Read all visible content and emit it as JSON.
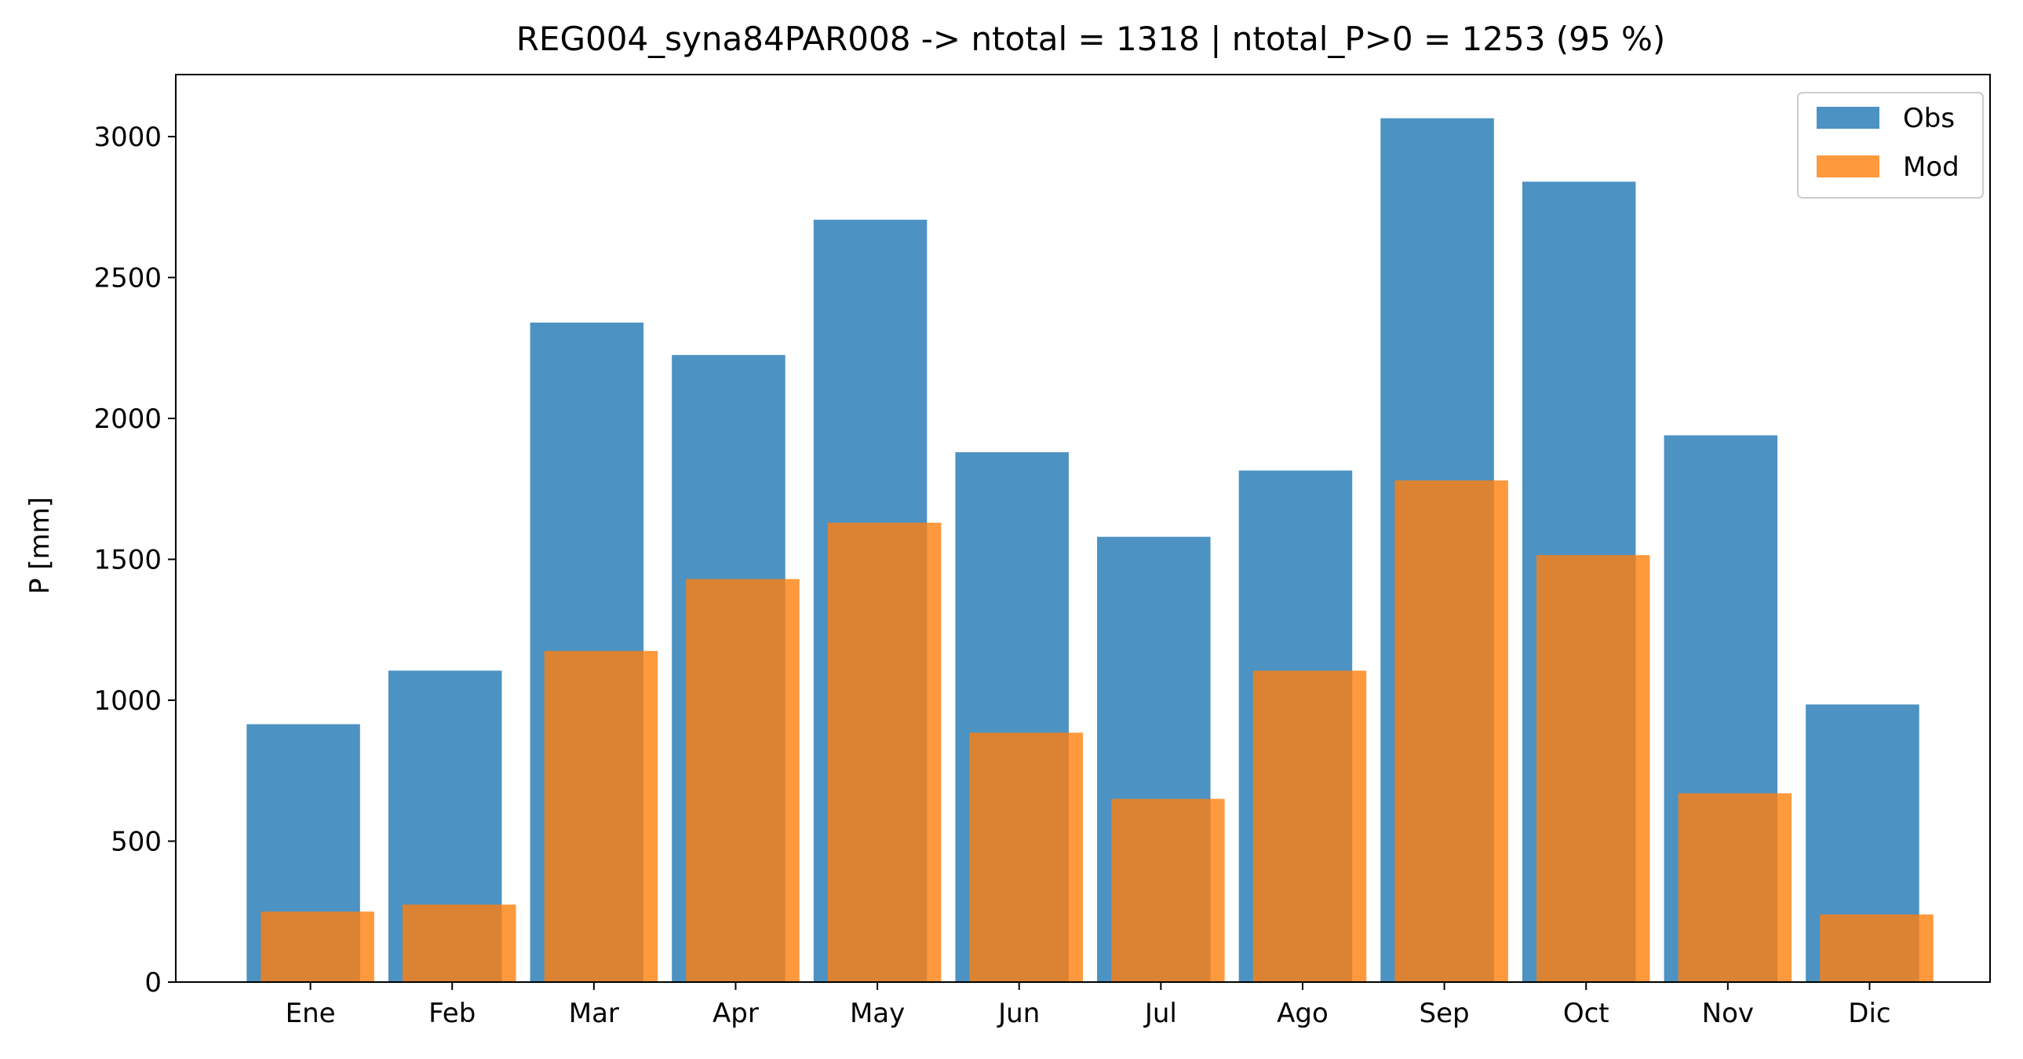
{
  "chart_data": {
    "type": "bar",
    "title": "REG004_syna84PAR008 -> ntotal = 1318 | ntotal_P>0 = 1253 (95 %)",
    "xlabel": "",
    "ylabel": "P [mm]",
    "categories": [
      "Ene",
      "Feb",
      "Mar",
      "Apr",
      "May",
      "Jun",
      "Jul",
      "Ago",
      "Sep",
      "Oct",
      "Nov",
      "Dic"
    ],
    "series": [
      {
        "name": "Obs",
        "color": "#1f77b4",
        "values": [
          915,
          1105,
          2340,
          2225,
          2705,
          1880,
          1580,
          1815,
          3065,
          2840,
          1940,
          985
        ]
      },
      {
        "name": "Mod",
        "color": "#ff7f0e",
        "values": [
          250,
          275,
          1175,
          1430,
          1630,
          885,
          650,
          1105,
          1780,
          1515,
          670,
          240
        ]
      }
    ],
    "ylim": [
      0,
      3220
    ],
    "yticks": [
      0,
      500,
      1000,
      1500,
      2000,
      2500,
      3000
    ],
    "bar_alpha": 0.8,
    "grid": false,
    "legend_position": "upper right"
  }
}
